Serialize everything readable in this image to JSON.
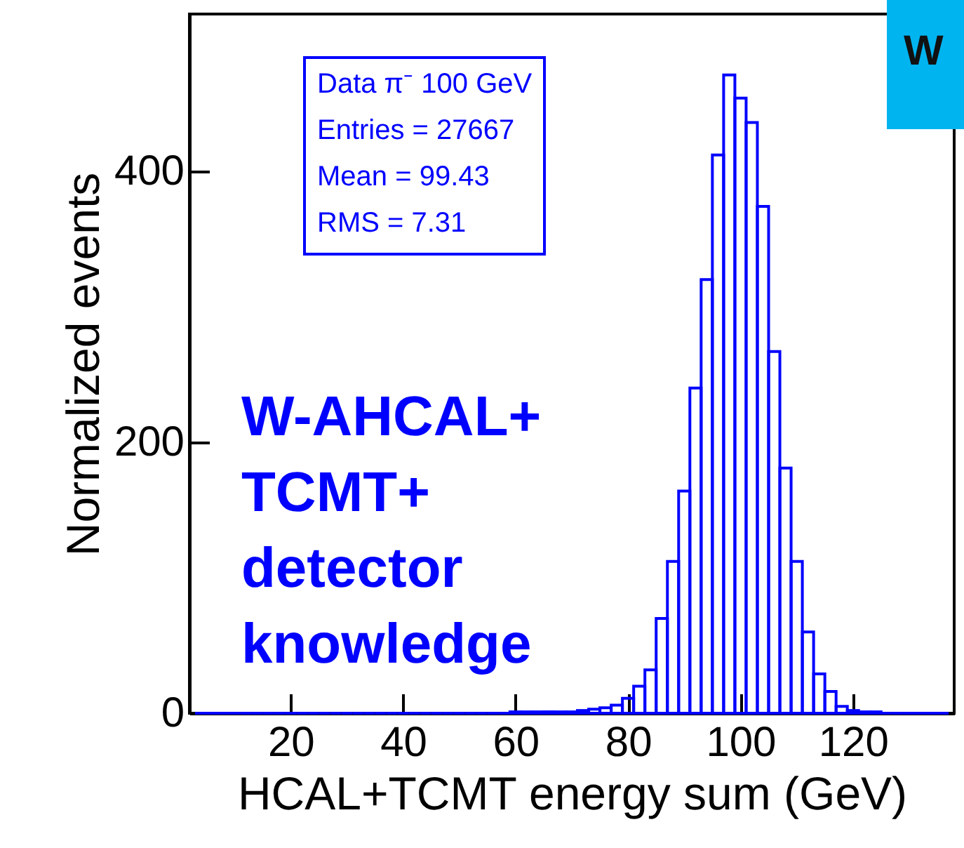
{
  "chart_data": {
    "type": "histogram",
    "xlabel": "HCAL+TCMT energy sum (GeV)",
    "ylabel": "Normalized events",
    "bins": [
      3,
      5,
      7,
      9,
      11,
      13,
      15,
      17,
      19,
      21,
      23,
      25,
      27,
      29,
      31,
      33,
      35,
      37,
      39,
      41,
      43,
      45,
      47,
      49,
      51,
      53,
      55,
      57,
      59,
      61,
      63,
      65,
      67,
      69,
      71,
      73,
      75,
      77,
      79,
      81,
      83,
      85,
      87,
      89,
      91,
      93,
      95,
      97,
      99,
      101,
      103,
      105,
      107,
      109,
      111,
      113,
      115,
      117,
      119,
      121,
      123,
      125,
      127,
      129,
      131,
      133,
      135,
      137
    ],
    "values": [
      0,
      0,
      0,
      0,
      0,
      0,
      0,
      0,
      0,
      0,
      0,
      0,
      0,
      0,
      0,
      0,
      0,
      0,
      0,
      0,
      0,
      0,
      0,
      0,
      0,
      0,
      0,
      0,
      1,
      1,
      1,
      1,
      1,
      1,
      2,
      3,
      4,
      6,
      11,
      20,
      32,
      70,
      112,
      164,
      240,
      320,
      412,
      471,
      454,
      436,
      374,
      267,
      181,
      112,
      60,
      29,
      16,
      5,
      2,
      1,
      1,
      0,
      0,
      0,
      0,
      0,
      0
    ],
    "color": "#0000ff",
    "xlim": [
      2,
      138
    ],
    "xticks": [
      20,
      40,
      60,
      80,
      100,
      120
    ],
    "ylim": [
      0,
      516
    ],
    "yticks": [
      0,
      200,
      400
    ],
    "annotations": [
      "Data π⁻ 100 GeV",
      "Entries = 27667",
      "Mean = 99.43",
      "RMS = 7.31",
      "W-AHCAL+\nTCMT+\ndetector\nknowledge",
      "W"
    ]
  }
}
